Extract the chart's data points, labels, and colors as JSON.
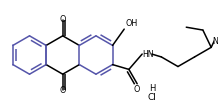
{
  "bg_color": "#ffffff",
  "line_color": "#000000",
  "bond_color": "#5555aa",
  "line_width": 1.1,
  "fig_width": 2.18,
  "fig_height": 1.11,
  "dpi": 100,
  "xlim": [
    0,
    218
  ],
  "ylim": [
    0,
    111
  ]
}
